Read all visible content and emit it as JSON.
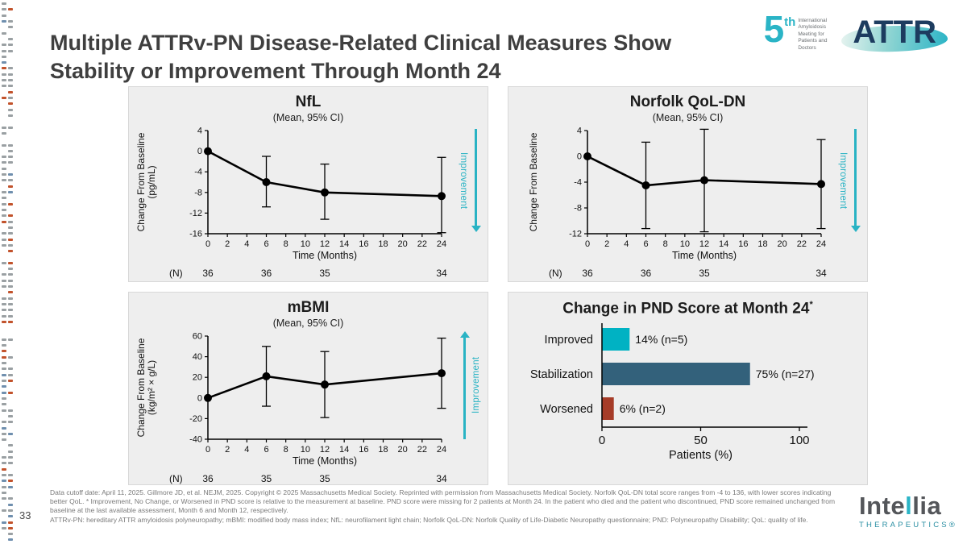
{
  "slide": {
    "title": "Multiple ATTRv-PN Disease-Related Clinical Measures Show Stability or Improvement Through Month 24"
  },
  "header": {
    "logo": {
      "number": "5",
      "ordinal": "th",
      "wordmark": "ATTR",
      "caption": "International Amyloidosis Meeting for Patients and Doctors"
    }
  },
  "colors": {
    "accent_teal": "#29b3c4",
    "bar_improved": "#00b2c3",
    "bar_stabilization": "#33617b",
    "bar_worsened": "#a63c28"
  },
  "chart_data": [
    {
      "id": "nfl",
      "type": "line",
      "title": "NfL",
      "subtitle": "(Mean, 95% CI)",
      "xlabel": "Time (Months)",
      "ylabel": "Change From Baseline",
      "ylabel2": "(pg/mL)",
      "x": [
        0,
        6,
        12,
        24
      ],
      "y": [
        0,
        -6,
        -8,
        -8.7
      ],
      "ci_high": [
        0,
        -1,
        -2.5,
        -1.2
      ],
      "ci_low": [
        0,
        -10.8,
        -13.2,
        -15.8
      ],
      "xlim": [
        0,
        24
      ],
      "xticks": [
        0,
        2,
        4,
        6,
        8,
        10,
        12,
        14,
        16,
        18,
        20,
        22,
        24
      ],
      "ylim": [
        -16,
        4
      ],
      "yticks": [
        4,
        0,
        -4,
        -8,
        -12,
        -16
      ],
      "n_label": "(N)",
      "n_values": [
        "36",
        "36",
        "35",
        "34"
      ],
      "arrow": {
        "direction": "down",
        "label": "Improvement"
      }
    },
    {
      "id": "norfolk-qol-dn",
      "type": "line",
      "title": "Norfolk QoL-DN",
      "subtitle": "(Mean, 95% CI)",
      "xlabel": "Time (Months)",
      "ylabel": "Change From Baseline",
      "x": [
        0,
        6,
        12,
        24
      ],
      "y": [
        0,
        -4.5,
        -3.7,
        -4.3
      ],
      "ci_high": [
        0,
        2.2,
        4.2,
        2.6
      ],
      "ci_low": [
        0,
        -11.2,
        -11.7,
        -11.2
      ],
      "xlim": [
        0,
        24
      ],
      "xticks": [
        0,
        2,
        4,
        6,
        8,
        10,
        12,
        14,
        16,
        18,
        20,
        22,
        24
      ],
      "ylim": [
        -12,
        4
      ],
      "yticks": [
        4,
        0,
        -4,
        -8,
        -12
      ],
      "n_label": "(N)",
      "n_values": [
        "36",
        "36",
        "35",
        "34"
      ],
      "arrow": {
        "direction": "down",
        "label": "Improvement"
      }
    },
    {
      "id": "mbmi",
      "type": "line",
      "title": "mBMI",
      "subtitle": "(Mean, 95% CI)",
      "xlabel": "Time (Months)",
      "ylabel": "Change From Baseline",
      "ylabel2": "(kg/m² × g/L)",
      "x": [
        0,
        6,
        12,
        24
      ],
      "y": [
        0,
        21,
        13,
        24
      ],
      "ci_high": [
        0,
        50,
        45,
        58
      ],
      "ci_low": [
        0,
        -8,
        -19,
        -10
      ],
      "xlim": [
        0,
        24
      ],
      "xticks": [
        0,
        2,
        4,
        6,
        8,
        10,
        12,
        14,
        16,
        18,
        20,
        22,
        24
      ],
      "ylim": [
        -40,
        60
      ],
      "yticks": [
        60,
        40,
        20,
        0,
        -20,
        -40
      ],
      "n_label": "(N)",
      "n_values": [
        "36",
        "35",
        "35",
        "34"
      ],
      "arrow": {
        "direction": "up",
        "label": "Improvement"
      }
    },
    {
      "id": "pnd-score",
      "type": "bar",
      "title": "Change in PND Score at Month 24",
      "title_sup": "*",
      "categories": [
        "Improved",
        "Stabilization",
        "Worsened"
      ],
      "values": [
        14,
        75,
        6
      ],
      "value_labels": [
        "14% (n=5)",
        "75% (n=27)",
        "6% (n=2)"
      ],
      "colors": [
        "#00b2c3",
        "#33617b",
        "#a63c28"
      ],
      "xlabel": "Patients (%)",
      "xlim": [
        0,
        100
      ],
      "xticks": [
        0,
        50,
        100
      ]
    }
  ],
  "footer": {
    "page_number": "33",
    "note1": "Data cutoff date: April 11, 2025. Gillmore JD, et al. NEJM, 2025. Copyright © 2025 Massachusetts Medical Society. Reprinted with permission from Massachusetts Medical Society. Norfolk QoL-DN total score ranges from -4 to 136, with lower scores indicating better QoL. * Improvement, No Change, or Worsened in PND score is relative to the measurement at baseline. PND score were missing for 2 patients at Month 24. In the patient who died and the patient who discontinued, PND score remained unchanged from baseline at the last available assessment, Month 6 and Month 12, respectively.",
    "note2": "ATTRv-PN: hereditary ATTR amyloidosis polyneuropathy; mBMI: modified body mass index; NfL: neurofilament light chain; Norfolk QoL-DN: Norfolk Quality of Life-Diabetic Neuropathy questionnaire; PND: Polyneuropathy Disability; QoL: quality of life.",
    "logo": {
      "part1": "Inte",
      "accent": "l",
      "part2": "lia",
      "sub": "THERAPEUTICS®"
    }
  }
}
